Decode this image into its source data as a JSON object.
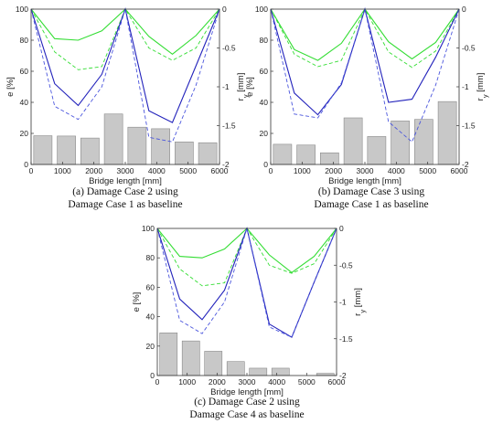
{
  "chart_data": [
    {
      "type": "bar",
      "caption": [
        "(a) Damage Case 2 using",
        "Damage Case 1 as baseline"
      ],
      "xlabel": "Bridge length [mm]",
      "ylabel": "e [%]",
      "ylabel_right": "r_y [mm]",
      "xlim": [
        0,
        6000
      ],
      "ylim": [
        0,
        100
      ],
      "ylim_right": [
        -2,
        0
      ],
      "xticks": [
        "0",
        "1000",
        "2000",
        "3000",
        "4000",
        "5000",
        "6000"
      ],
      "yticks": [
        "0",
        "20",
        "40",
        "60",
        "80",
        "100"
      ],
      "yticks_right": [
        "-2",
        "-1.5",
        "-1",
        "-0.5",
        "0"
      ],
      "bars": {
        "x": [
          375,
          1125,
          1875,
          2625,
          3375,
          4125,
          4875,
          5625
        ],
        "values": [
          18.5,
          18.3,
          17,
          32.5,
          24,
          23,
          14.5,
          14
        ]
      },
      "series": [
        {
          "style": "green-solid",
          "x": [
            0,
            750,
            1500,
            2250,
            3000,
            3750,
            4500,
            5250,
            6000
          ],
          "y": [
            0,
            -0.38,
            -0.4,
            -0.28,
            0,
            -0.35,
            -0.58,
            -0.34,
            0
          ]
        },
        {
          "style": "green-dashed",
          "x": [
            0,
            750,
            1500,
            2250,
            3000,
            3750,
            4500,
            5250,
            6000
          ],
          "y": [
            0,
            -0.55,
            -0.78,
            -0.74,
            0,
            -0.5,
            -0.66,
            -0.5,
            0
          ]
        },
        {
          "style": "blue-solid",
          "x": [
            0,
            750,
            1500,
            2250,
            3000,
            3750,
            4500,
            5250,
            6000
          ],
          "y": [
            0,
            -0.96,
            -1.24,
            -0.84,
            0,
            -1.31,
            -1.46,
            -0.73,
            0
          ]
        },
        {
          "style": "blue-dashed",
          "x": [
            0,
            750,
            1500,
            2250,
            3000,
            3750,
            4500,
            5250,
            6000
          ],
          "y": [
            0,
            -1.25,
            -1.42,
            -1.0,
            0,
            -1.65,
            -1.71,
            -0.98,
            0
          ]
        }
      ]
    },
    {
      "type": "bar",
      "caption": [
        "(b) Damage Case 3 using",
        "Damage Case 1 as baseline"
      ],
      "xlabel": "Bridge length [mm]",
      "ylabel": "e [%]",
      "ylabel_right": "r_y [mm]",
      "xlim": [
        0,
        6000
      ],
      "ylim": [
        0,
        100
      ],
      "ylim_right": [
        -2,
        0
      ],
      "xticks": [
        "0",
        "1000",
        "2000",
        "3000",
        "4000",
        "5000",
        "6000"
      ],
      "yticks": [
        "0",
        "20",
        "40",
        "60",
        "80",
        "100"
      ],
      "yticks_right": [
        "-2",
        "-1.5",
        "-1",
        "-0.5",
        "0"
      ],
      "bars": {
        "x": [
          375,
          1125,
          1875,
          2625,
          3375,
          4125,
          4875,
          5625
        ],
        "values": [
          13,
          12.5,
          7.5,
          30,
          18,
          28,
          29,
          40.5
        ]
      },
      "series": [
        {
          "style": "green-solid",
          "x": [
            0,
            750,
            1500,
            2250,
            3000,
            3750,
            4500,
            5250,
            6000
          ],
          "y": [
            0,
            -0.52,
            -0.66,
            -0.44,
            0,
            -0.42,
            -0.64,
            -0.43,
            0
          ]
        },
        {
          "style": "green-dashed",
          "x": [
            0,
            750,
            1500,
            2250,
            3000,
            3750,
            4500,
            5250,
            6000
          ],
          "y": [
            0,
            -0.58,
            -0.74,
            -0.66,
            0,
            -0.55,
            -0.75,
            -0.54,
            0
          ]
        },
        {
          "style": "blue-solid",
          "x": [
            0,
            750,
            1500,
            2250,
            3000,
            3750,
            4500,
            5250,
            6000
          ],
          "y": [
            0,
            -1.08,
            -1.36,
            -0.97,
            0,
            -1.2,
            -1.16,
            -0.62,
            0
          ]
        },
        {
          "style": "blue-dashed",
          "x": [
            0,
            750,
            1500,
            2250,
            3000,
            3750,
            4500,
            5250,
            6000
          ],
          "y": [
            0,
            -1.35,
            -1.4,
            -0.95,
            0,
            -1.45,
            -1.71,
            -0.98,
            0
          ]
        }
      ]
    },
    {
      "type": "bar",
      "caption": [
        "(c) Damage Case 2 using",
        "Damage Case 4 as baseline"
      ],
      "xlabel": "Bridge length [mm]",
      "ylabel": "e [%]",
      "ylabel_right": "r_y [mm]",
      "xlim": [
        0,
        6000
      ],
      "ylim": [
        0,
        100
      ],
      "ylim_right": [
        -2,
        0
      ],
      "xticks": [
        "0",
        "1000",
        "2000",
        "3000",
        "4000",
        "5000",
        "6000"
      ],
      "yticks": [
        "0",
        "20",
        "40",
        "60",
        "80",
        "100"
      ],
      "yticks_right": [
        "-2",
        "-1.5",
        "-1",
        "-0.5",
        "0"
      ],
      "bars": {
        "x": [
          375,
          1125,
          1875,
          2625,
          3375,
          4125,
          4875,
          5625
        ],
        "values": [
          29,
          23.5,
          16.5,
          9.5,
          5,
          5,
          0,
          1.5
        ]
      },
      "series": [
        {
          "style": "green-solid",
          "x": [
            0,
            750,
            1500,
            2250,
            3000,
            3750,
            4500,
            5250,
            6000
          ],
          "y": [
            0,
            -0.38,
            -0.4,
            -0.28,
            0,
            -0.36,
            -0.6,
            -0.38,
            0
          ]
        },
        {
          "style": "green-dashed",
          "x": [
            0,
            750,
            1500,
            2250,
            3000,
            3750,
            4500,
            5250,
            6000
          ],
          "y": [
            0,
            -0.55,
            -0.78,
            -0.74,
            0,
            -0.5,
            -0.61,
            -0.48,
            0
          ]
        },
        {
          "style": "blue-solid",
          "x": [
            0,
            750,
            1500,
            2250,
            3000,
            3750,
            4500,
            5250,
            6000
          ],
          "y": [
            0,
            -0.96,
            -1.24,
            -0.84,
            0,
            -1.3,
            -1.48,
            -0.73,
            0
          ]
        },
        {
          "style": "blue-dashed",
          "x": [
            0,
            750,
            1500,
            2250,
            3000,
            3750,
            4500,
            5250,
            6000
          ],
          "y": [
            0,
            -1.25,
            -1.43,
            -1.0,
            0,
            -1.34,
            -1.48,
            -0.73,
            0
          ]
        }
      ]
    }
  ],
  "colors": {
    "bar_fill": "#c8c8c8",
    "bar_stroke": "#8a8a8a",
    "green": "#33dd33",
    "blue": "#2222bb",
    "blue_dashed": "#4a55dd",
    "axis": "#333333"
  }
}
